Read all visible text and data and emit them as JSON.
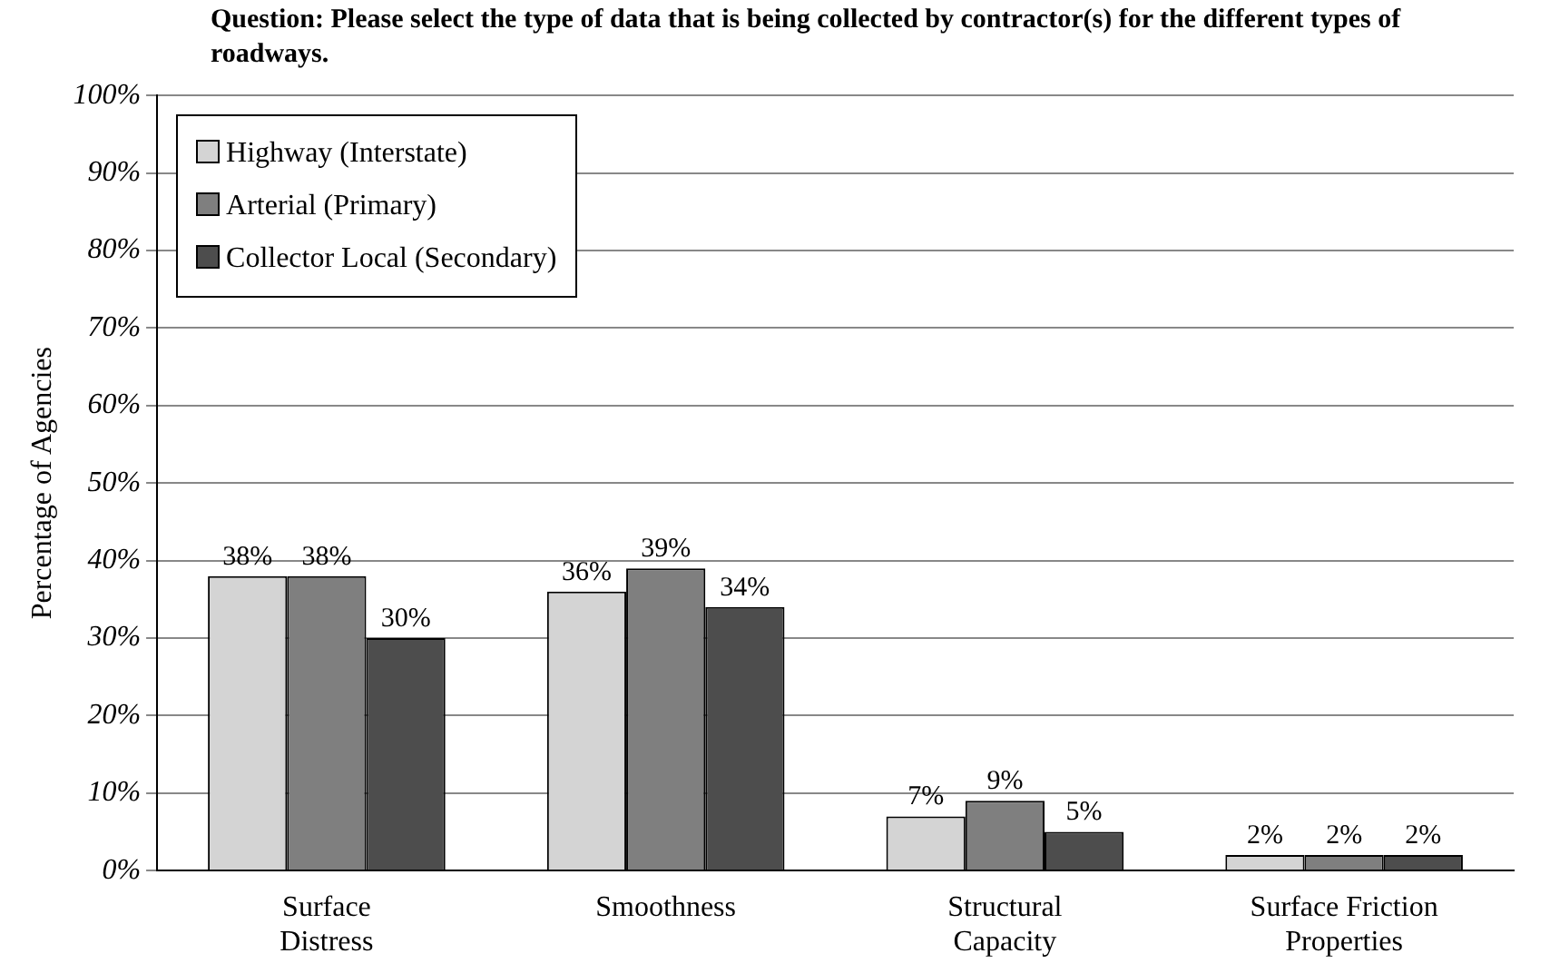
{
  "chart_data": {
    "type": "bar",
    "title": "Question: Please select the type of data that is being collected by contractor(s) for the different types of roadways.",
    "ylabel": "Percentage of Agencies",
    "categories": [
      "Surface\nDistress",
      "Smoothness",
      "Structural\nCapacity",
      "Surface Friction\nProperties"
    ],
    "series": [
      {
        "name": "Highway (Interstate)",
        "color": "#d4d4d4",
        "values": [
          38,
          36,
          7,
          2
        ],
        "value_labels": [
          "38%",
          "36%",
          "7%",
          "2%"
        ]
      },
      {
        "name": "Arterial (Primary)",
        "color": "#7f7f7f",
        "values": [
          38,
          39,
          9,
          2
        ],
        "value_labels": [
          "38%",
          "39%",
          "9%",
          "2%"
        ]
      },
      {
        "name": "Collector Local (Secondary)",
        "color": "#4d4d4d",
        "values": [
          30,
          34,
          5,
          2
        ],
        "value_labels": [
          "30%",
          "34%",
          "5%",
          "2%"
        ]
      }
    ],
    "ylim": [
      0,
      100
    ],
    "yticks": [
      {
        "value": 0,
        "label": "0%"
      },
      {
        "value": 10,
        "label": "10%"
      },
      {
        "value": 20,
        "label": "20%"
      },
      {
        "value": 30,
        "label": "30%"
      },
      {
        "value": 40,
        "label": "40%"
      },
      {
        "value": 50,
        "label": "50%"
      },
      {
        "value": 60,
        "label": "60%"
      },
      {
        "value": 70,
        "label": "70%"
      },
      {
        "value": 80,
        "label": "80%"
      },
      {
        "value": 90,
        "label": "90%"
      },
      {
        "value": 100,
        "label": "100%"
      }
    ],
    "grid": "y",
    "legend": "top left"
  }
}
